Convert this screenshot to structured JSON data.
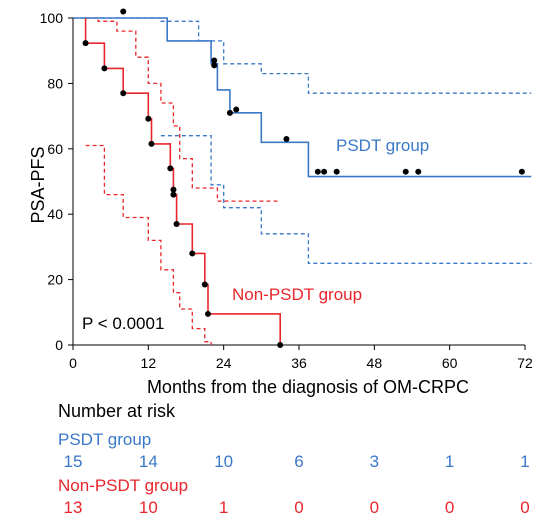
{
  "colors": {
    "psdt": "#3a78c8",
    "non_psdt": "#e8262b",
    "axis": "#000000",
    "marker": "#000000"
  },
  "chart_data": {
    "type": "line",
    "subtype": "kaplan-meier",
    "title": "",
    "xlabel": "Months from the diagnosis of OM-CRPC",
    "ylabel": "PSA-PFS",
    "xlim": [
      0,
      72
    ],
    "ylim": [
      0,
      100
    ],
    "xticks": [
      0,
      12,
      24,
      36,
      48,
      60,
      72
    ],
    "yticks": [
      0,
      20,
      40,
      60,
      80,
      100
    ],
    "grid": false,
    "annotation": "P < 0.0001",
    "series": [
      {
        "name": "PSDT group",
        "color_key": "psdt",
        "step": [
          [
            0,
            100
          ],
          [
            15,
            100
          ],
          [
            15,
            93
          ],
          [
            22,
            93
          ],
          [
            22,
            86
          ],
          [
            23,
            86
          ],
          [
            23,
            78
          ],
          [
            25,
            78
          ],
          [
            25,
            71
          ],
          [
            30,
            71
          ],
          [
            30,
            62
          ],
          [
            37.5,
            62
          ],
          [
            37.5,
            51.5
          ],
          [
            73,
            51.5
          ]
        ],
        "ci_upper": [
          [
            0,
            100
          ],
          [
            14,
            100
          ],
          [
            14,
            99
          ],
          [
            20,
            99
          ],
          [
            20,
            93
          ],
          [
            24,
            93
          ],
          [
            24,
            86
          ],
          [
            30,
            86
          ],
          [
            30,
            83
          ],
          [
            37.5,
            83
          ],
          [
            37.5,
            77
          ],
          [
            73,
            77
          ]
        ],
        "ci_lower": [
          [
            14,
            64
          ],
          [
            22,
            64
          ],
          [
            22,
            49
          ],
          [
            24,
            49
          ],
          [
            24,
            42
          ],
          [
            30,
            42
          ],
          [
            30,
            34
          ],
          [
            37.5,
            34
          ],
          [
            37.5,
            25
          ],
          [
            73,
            25
          ]
        ],
        "censored": [
          [
            8,
            102
          ],
          [
            22.5,
            87
          ],
          [
            22.5,
            85.5
          ],
          [
            25,
            71
          ],
          [
            26,
            72
          ],
          [
            34,
            63
          ],
          [
            39,
            53
          ],
          [
            40,
            53
          ],
          [
            42,
            53
          ],
          [
            53,
            53
          ],
          [
            55,
            53
          ],
          [
            71.5,
            53
          ]
        ]
      },
      {
        "name": "Non-PSDT group",
        "color_key": "non_psdt",
        "step": [
          [
            2,
            100
          ],
          [
            2,
            92.3
          ],
          [
            5,
            92.3
          ],
          [
            5,
            84.6
          ],
          [
            8,
            84.6
          ],
          [
            8,
            77
          ],
          [
            12,
            77
          ],
          [
            12,
            69.2
          ],
          [
            12.5,
            69.2
          ],
          [
            12.5,
            61.5
          ],
          [
            15.5,
            61.5
          ],
          [
            15.5,
            54
          ],
          [
            16,
            54
          ],
          [
            16,
            46
          ],
          [
            16.5,
            46
          ],
          [
            16.5,
            37
          ],
          [
            19,
            37
          ],
          [
            19,
            28
          ],
          [
            21,
            28
          ],
          [
            21,
            18.5
          ],
          [
            21.5,
            18.5
          ],
          [
            21.5,
            9.5
          ],
          [
            33,
            9.5
          ],
          [
            33,
            0
          ]
        ],
        "ci_upper": [
          [
            2,
            100
          ],
          [
            4,
            100
          ],
          [
            4,
            99
          ],
          [
            7,
            99
          ],
          [
            7,
            96
          ],
          [
            10,
            96
          ],
          [
            10,
            88
          ],
          [
            12,
            88
          ],
          [
            12,
            80
          ],
          [
            14,
            80
          ],
          [
            14,
            74
          ],
          [
            16,
            74
          ],
          [
            16,
            67
          ],
          [
            17,
            67
          ],
          [
            17,
            57
          ],
          [
            19,
            57
          ],
          [
            19,
            48
          ],
          [
            23,
            48
          ],
          [
            23,
            44
          ],
          [
            33,
            44
          ]
        ],
        "ci_lower": [
          [
            2,
            61
          ],
          [
            5,
            61
          ],
          [
            5,
            46
          ],
          [
            8,
            46
          ],
          [
            8,
            39
          ],
          [
            12,
            39
          ],
          [
            12,
            32
          ],
          [
            14,
            32
          ],
          [
            14,
            23
          ],
          [
            16,
            23
          ],
          [
            16,
            16
          ],
          [
            17,
            16
          ],
          [
            17,
            11
          ],
          [
            19,
            11
          ],
          [
            19,
            5
          ],
          [
            21,
            5
          ],
          [
            21,
            1
          ],
          [
            22,
            1
          ],
          [
            22,
            0
          ]
        ],
        "censored": [
          [
            2,
            92.3
          ],
          [
            5,
            84.6
          ],
          [
            8,
            77
          ],
          [
            12,
            69.2
          ],
          [
            12.5,
            61.5
          ],
          [
            15.5,
            54
          ],
          [
            16,
            47.5
          ],
          [
            16,
            46
          ],
          [
            16.5,
            37
          ],
          [
            19,
            28
          ],
          [
            21,
            18.5
          ],
          [
            21.5,
            9.5
          ],
          [
            33,
            0
          ]
        ]
      }
    ],
    "series_labels": [
      {
        "text": "PSDT group",
        "color_key": "psdt"
      },
      {
        "text": "Non-PSDT group",
        "color_key": "non_psdt"
      }
    ]
  },
  "risk_table": {
    "heading": "Number at risk",
    "time_points": [
      0,
      12,
      24,
      36,
      48,
      60,
      72
    ],
    "rows": [
      {
        "label": "PSDT group",
        "color_key": "psdt",
        "values": [
          "15",
          "14",
          "10",
          "6",
          "3",
          "1",
          "1"
        ]
      },
      {
        "label": "Non-PSDT group",
        "color_key": "non_psdt",
        "values": [
          "13",
          "10",
          "1",
          "0",
          "0",
          "0",
          "0"
        ]
      }
    ]
  }
}
